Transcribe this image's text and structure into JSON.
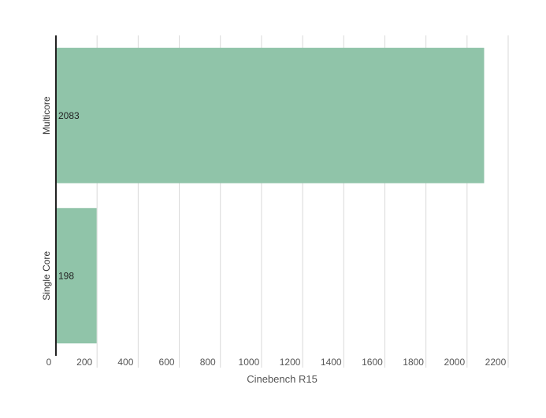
{
  "chart_data": {
    "type": "bar",
    "orientation": "horizontal",
    "categories": [
      "Multicore",
      "Single Core"
    ],
    "values": [
      2083,
      198
    ],
    "data_labels": [
      "2083",
      "198"
    ],
    "xlabel": "Cinebench R15",
    "ylabel": "",
    "xlim": [
      0,
      2200
    ],
    "xticks": [
      0,
      200,
      400,
      600,
      800,
      1000,
      1200,
      1400,
      1600,
      1800,
      2000,
      2200
    ],
    "grid": "vertical",
    "legend": "none",
    "bar_color": "#90c4a9"
  }
}
